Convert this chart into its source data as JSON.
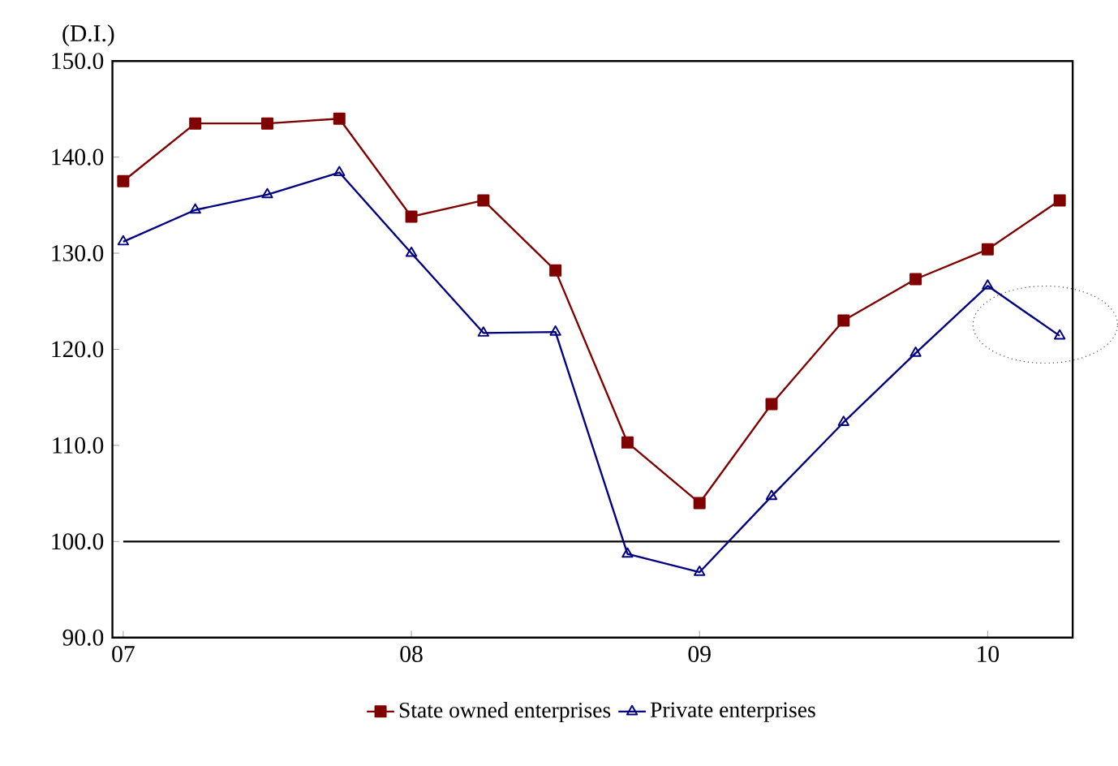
{
  "chart_data": {
    "type": "line",
    "ylabel": "(D.I.)",
    "categories": [
      "07",
      null,
      null,
      null,
      "08",
      null,
      null,
      null,
      "09",
      null,
      null,
      null,
      "10",
      null
    ],
    "series": [
      {
        "name": "State owned enterprises",
        "color": "#800000",
        "marker": "square",
        "values": [
          137.5,
          143.5,
          143.5,
          144.0,
          133.8,
          135.5,
          128.2,
          110.3,
          104.0,
          114.3,
          123.0,
          127.3,
          130.4,
          135.5
        ]
      },
      {
        "name": "Private enterprises",
        "color": "#000080",
        "marker": "triangle",
        "values": [
          131.2,
          134.5,
          136.1,
          138.4,
          130.0,
          121.7,
          121.8,
          98.7,
          96.8,
          104.7,
          112.4,
          119.6,
          126.6,
          121.4
        ]
      }
    ],
    "ylim": [
      90,
      150
    ],
    "yticks": [
      {
        "value": 90,
        "label": "90.0"
      },
      {
        "value": 100,
        "label": "100.0"
      },
      {
        "value": 110,
        "label": "110.0"
      },
      {
        "value": 120,
        "label": "120.0"
      },
      {
        "value": 130,
        "label": "130.0"
      },
      {
        "value": 140,
        "label": "140.0"
      },
      {
        "value": 150,
        "label": "150.0"
      }
    ],
    "ref_lines": [
      {
        "axis": "y",
        "value": 100,
        "color": "#000000"
      }
    ],
    "grid": false,
    "legend": "bottom"
  }
}
